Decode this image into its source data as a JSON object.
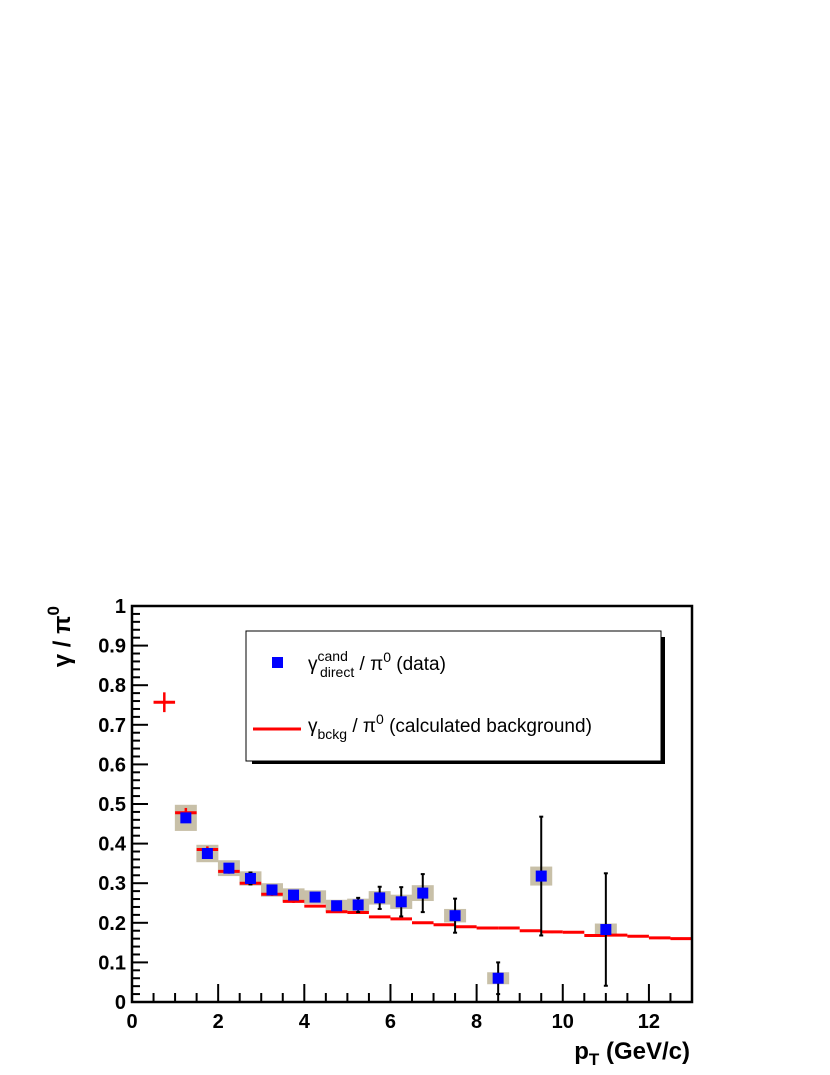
{
  "colors": {
    "data_marker": "#0000ff",
    "background_line": "#ff0000",
    "systematic_box": "#c8c0a8",
    "error_bar": "#000000"
  },
  "chart_data": {
    "type": "scatter",
    "xlabel": {
      "main": "p",
      "sub": "T",
      "unit": " (GeV/c)"
    },
    "ylabel": {
      "main": "γ / π",
      "sup": "0"
    },
    "xlim": [
      0,
      13
    ],
    "ylim": [
      0,
      1
    ],
    "x_ticks": [
      "0",
      "2",
      "4",
      "6",
      "8",
      "10",
      "12"
    ],
    "y_ticks": [
      "0",
      "0.1",
      "0.2",
      "0.3",
      "0.4",
      "0.5",
      "0.6",
      "0.7",
      "0.8",
      "0.9",
      "1"
    ],
    "grid": false,
    "legend_position": "top-right",
    "legend": [
      {
        "main": "γ",
        "sup": "cand",
        "sub": "direct",
        "rest": " / π",
        "rest_sup": "0",
        "tail": "  (data)"
      },
      {
        "main": "γ",
        "sub": "bckg",
        "rest": " / π",
        "rest_sup": "0",
        "tail": "  (calculated background)"
      }
    ],
    "series": [
      {
        "name": "data",
        "marker": "square",
        "points": [
          {
            "x": 1.25,
            "y": 0.465,
            "stat": 0.0,
            "sys": 0.033
          },
          {
            "x": 1.75,
            "y": 0.375,
            "stat": 0.0,
            "sys": 0.022
          },
          {
            "x": 2.25,
            "y": 0.338,
            "stat": 0.0,
            "sys": 0.02
          },
          {
            "x": 2.75,
            "y": 0.312,
            "stat": 0.015,
            "sys": 0.018
          },
          {
            "x": 3.25,
            "y": 0.283,
            "stat": 0.0,
            "sys": 0.017
          },
          {
            "x": 3.75,
            "y": 0.27,
            "stat": 0.0,
            "sys": 0.017
          },
          {
            "x": 4.25,
            "y": 0.265,
            "stat": 0.0,
            "sys": 0.017
          },
          {
            "x": 4.75,
            "y": 0.243,
            "stat": 0.0,
            "sys": 0.015
          },
          {
            "x": 5.25,
            "y": 0.245,
            "stat": 0.018,
            "sys": 0.016
          },
          {
            "x": 5.75,
            "y": 0.263,
            "stat": 0.028,
            "sys": 0.017
          },
          {
            "x": 6.25,
            "y": 0.253,
            "stat": 0.037,
            "sys": 0.018
          },
          {
            "x": 6.75,
            "y": 0.275,
            "stat": 0.048,
            "sys": 0.02
          },
          {
            "x": 7.5,
            "y": 0.218,
            "stat": 0.043,
            "sys": 0.017
          },
          {
            "x": 8.5,
            "y": 0.06,
            "stat": 0.04,
            "sys": 0.005
          },
          {
            "x": 9.5,
            "y": 0.318,
            "stat": 0.15,
            "sys": 0.024
          },
          {
            "x": 11.0,
            "y": 0.183,
            "stat": 0.142,
            "sys": 0.014
          }
        ]
      },
      {
        "name": "calculated background",
        "marker": "line-segments",
        "points": [
          {
            "x": 0.75,
            "y": 0.757,
            "xerr": 0.25,
            "yerr": 0.025
          },
          {
            "x": 1.25,
            "y": 0.478,
            "xerr": 0.25,
            "yerr": 0.012
          },
          {
            "x": 1.75,
            "y": 0.385,
            "xerr": 0.25,
            "yerr": 0.008
          },
          {
            "x": 2.25,
            "y": 0.33,
            "xerr": 0.25,
            "yerr": 0.006
          },
          {
            "x": 2.75,
            "y": 0.3,
            "xerr": 0.25,
            "yerr": 0.005
          },
          {
            "x": 3.25,
            "y": 0.272,
            "xerr": 0.25,
            "yerr": 0.004
          },
          {
            "x": 3.75,
            "y": 0.254,
            "xerr": 0.25,
            "yerr": 0.004
          },
          {
            "x": 4.25,
            "y": 0.242,
            "xerr": 0.25,
            "yerr": 0.003
          },
          {
            "x": 4.75,
            "y": 0.228,
            "xerr": 0.25,
            "yerr": 0.003
          },
          {
            "x": 5.25,
            "y": 0.226,
            "xerr": 0.25,
            "yerr": 0.003
          },
          {
            "x": 5.75,
            "y": 0.215,
            "xerr": 0.25,
            "yerr": 0.003
          },
          {
            "x": 6.25,
            "y": 0.21,
            "xerr": 0.25,
            "yerr": 0.003
          },
          {
            "x": 6.75,
            "y": 0.2,
            "xerr": 0.25,
            "yerr": 0.003
          },
          {
            "x": 7.25,
            "y": 0.195,
            "xerr": 0.25,
            "yerr": 0.003
          },
          {
            "x": 7.75,
            "y": 0.19,
            "xerr": 0.25,
            "yerr": 0.003
          },
          {
            "x": 8.25,
            "y": 0.187,
            "xerr": 0.25,
            "yerr": 0.003
          },
          {
            "x": 8.75,
            "y": 0.187,
            "xerr": 0.25,
            "yerr": 0.003
          },
          {
            "x": 9.25,
            "y": 0.18,
            "xerr": 0.25,
            "yerr": 0.003
          },
          {
            "x": 9.75,
            "y": 0.177,
            "xerr": 0.25,
            "yerr": 0.003
          },
          {
            "x": 10.25,
            "y": 0.176,
            "xerr": 0.25,
            "yerr": 0.003
          },
          {
            "x": 10.75,
            "y": 0.168,
            "xerr": 0.25,
            "yerr": 0.003
          },
          {
            "x": 11.25,
            "y": 0.169,
            "xerr": 0.25,
            "yerr": 0.003
          },
          {
            "x": 11.75,
            "y": 0.166,
            "xerr": 0.25,
            "yerr": 0.003
          },
          {
            "x": 12.25,
            "y": 0.162,
            "xerr": 0.25,
            "yerr": 0.003
          },
          {
            "x": 12.75,
            "y": 0.16,
            "xerr": 0.25,
            "yerr": 0.003
          }
        ]
      }
    ]
  }
}
